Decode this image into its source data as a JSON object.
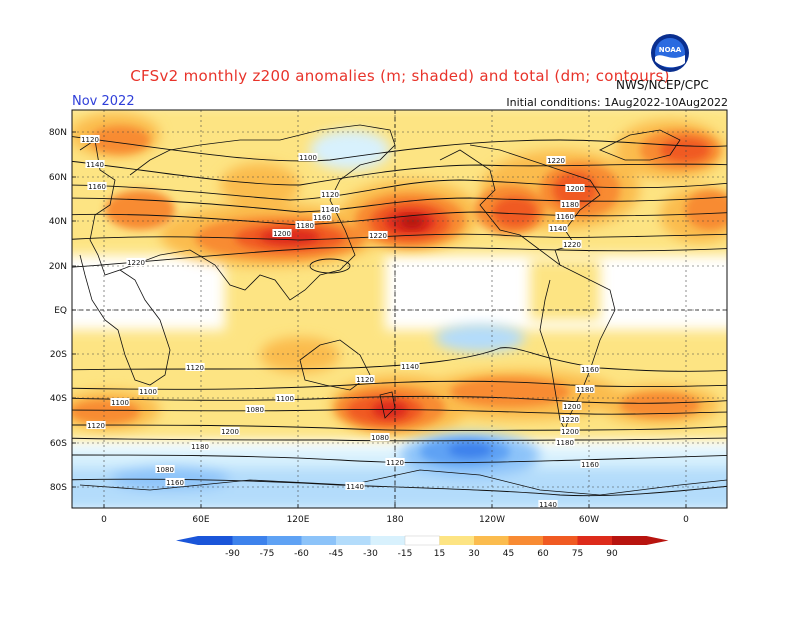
{
  "header": {
    "title": "CFSv2 monthly z200 anomalies (m; shaded) and total (dm; contours)",
    "month": "Nov 2022",
    "initial_conditions": "Initial conditions: 1Aug2022-10Aug2022",
    "agency": "NWS/NCEP/CPC",
    "logo_text": "NOAA"
  },
  "map": {
    "lat_labels": [
      "80N",
      "60N",
      "40N",
      "20N",
      "EQ",
      "20S",
      "40S",
      "60S",
      "80S"
    ],
    "lon_labels": [
      "0",
      "60E",
      "120E",
      "180",
      "120W",
      "60W",
      "0"
    ],
    "contour_labels": [
      "1120",
      "1140",
      "1160",
      "1100",
      "1120",
      "1140",
      "1160",
      "1180",
      "1200",
      "1220",
      "1220",
      "1220",
      "1220",
      "1200",
      "1180",
      "1160",
      "1140",
      "1120",
      "1100",
      "1080",
      "1200",
      "1180",
      "1160",
      "1140",
      "1120",
      "1100",
      "1080",
      "1120",
      "1140",
      "1160",
      "1180",
      "1200",
      "1220",
      "1200",
      "1180",
      "1160",
      "1140",
      "1120",
      "1100",
      "1080"
    ],
    "colors": {
      "neg90": "#1a55d9",
      "neg75": "#3d82ec",
      "neg60": "#5fa2f4",
      "neg45": "#8cc3f9",
      "neg30": "#b3dcfb",
      "neg15": "#d8f1fd",
      "zero": "#ffffff",
      "pos15": "#fde483",
      "pos30": "#fbbc4e",
      "pos45": "#f88b33",
      "pos60": "#f05a22",
      "pos75": "#dd2b1b",
      "pos90": "#b8140f"
    }
  },
  "colorbar": {
    "labels": [
      "-90",
      "-75",
      "-60",
      "-45",
      "-30",
      "-15",
      "15",
      "30",
      "45",
      "60",
      "75",
      "90"
    ]
  }
}
